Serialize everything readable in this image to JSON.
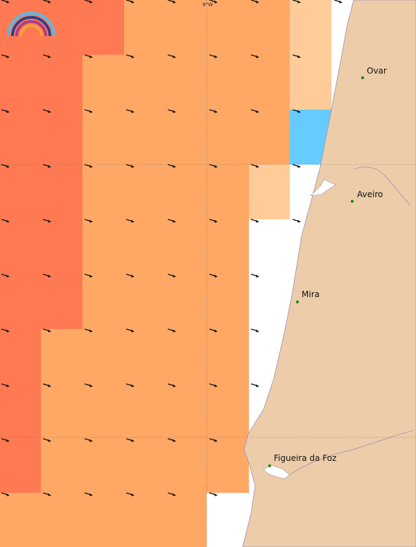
{
  "map": {
    "grid_label": "9°W",
    "colors": {
      "high": "#ff7a52",
      "mid": "#ffa866",
      "low": "#ffcc99",
      "cold": "#66ccff",
      "land": "#edcca9",
      "coast": "#9a8fb0",
      "arrow": "#111111",
      "city": "#0a8a0a"
    },
    "cities": [
      {
        "id": "ovar",
        "name": "Ovar"
      },
      {
        "id": "aveiro",
        "name": "Aveiro"
      },
      {
        "id": "mira",
        "name": "Mira"
      },
      {
        "id": "figueira",
        "name": "Figueira da Foz"
      }
    ],
    "logo": {
      "name": "rainbow-logo-icon"
    }
  }
}
